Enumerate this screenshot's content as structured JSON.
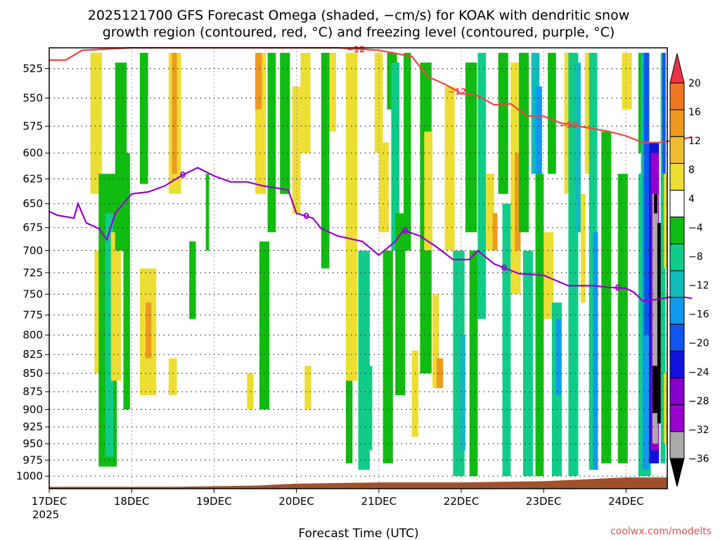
{
  "chart_data": {
    "type": "heatmap",
    "title_line1": "2025121700 GFS Forecast Omega (shaded, −cm/s) for KOAK with dendritic snow",
    "title_line2": "growth region (contoured, red, °C) and freezing level (contoured, purple, °C)",
    "xlabel": "Forecast Time (UTC)",
    "credit": "coolwx.com/modelts",
    "x_ticks": [
      "17DEC",
      "18DEC",
      "19DEC",
      "20DEC",
      "21DEC",
      "22DEC",
      "23DEC",
      "24DEC"
    ],
    "x_year": "2025",
    "x_range_days": [
      0,
      7.5
    ],
    "y_ticks": [
      525,
      550,
      575,
      600,
      625,
      650,
      675,
      700,
      725,
      750,
      775,
      800,
      825,
      850,
      875,
      900,
      925,
      950,
      975,
      1000
    ],
    "y_range_hpa": [
      508,
      1020
    ],
    "y_scale": "log",
    "colorbar_labels": [
      "20",
      "16",
      "12",
      "8",
      "4",
      "−4",
      "−8",
      "−12",
      "−16",
      "−20",
      "−24",
      "−28",
      "−32",
      "−36"
    ],
    "colorbar_colors": [
      "#ee3344",
      "#ee7722",
      "#ee9922",
      "#eebb33",
      "#eedd33",
      "#ffffff",
      "#11bb11",
      "#11cc88",
      "#11bbbb",
      "#1199ee",
      "#1155ee",
      "#1111dd",
      "#8800cc",
      "#9900cc",
      "#aaaaaa",
      "#000000"
    ],
    "colors": {
      "freezing_level": "#9900cc",
      "dgz": "#ee4444",
      "terrain": "#a0522d",
      "credit": "#e05050"
    },
    "freezing_level": {
      "label": "0",
      "points": [
        [
          0,
          658
        ],
        [
          0.1,
          662
        ],
        [
          0.3,
          665
        ],
        [
          0.35,
          650
        ],
        [
          0.45,
          670
        ],
        [
          0.6,
          676
        ],
        [
          0.7,
          688
        ],
        [
          0.8,
          660
        ],
        [
          1.0,
          640
        ],
        [
          1.2,
          638
        ],
        [
          1.4,
          632
        ],
        [
          1.6,
          622
        ],
        [
          1.8,
          614
        ],
        [
          2.0,
          622
        ],
        [
          2.2,
          628
        ],
        [
          2.4,
          628
        ],
        [
          2.6,
          632
        ],
        [
          2.9,
          636
        ],
        [
          3.0,
          660
        ],
        [
          3.2,
          665
        ],
        [
          3.3,
          676
        ],
        [
          3.5,
          684
        ],
        [
          3.8,
          690
        ],
        [
          4.0,
          705
        ],
        [
          4.2,
          690
        ],
        [
          4.3,
          678
        ],
        [
          4.5,
          684
        ],
        [
          4.7,
          696
        ],
        [
          4.9,
          710
        ],
        [
          5.1,
          710
        ],
        [
          5.2,
          700
        ],
        [
          5.4,
          715
        ],
        [
          5.7,
          726
        ],
        [
          6.0,
          728
        ],
        [
          6.3,
          740
        ],
        [
          6.6,
          740
        ],
        [
          6.8,
          742
        ],
        [
          7.0,
          743
        ],
        [
          7.1,
          748
        ],
        [
          7.2,
          758
        ],
        [
          7.4,
          756
        ],
        [
          7.6,
          752
        ],
        [
          7.8,
          755
        ]
      ]
    },
    "dgz_contour": {
      "label": "−12",
      "points": [
        [
          0,
          518
        ],
        [
          0.2,
          518
        ],
        [
          0.4,
          510
        ],
        [
          1.0,
          508
        ],
        [
          3.5,
          508
        ],
        [
          4.0,
          510
        ],
        [
          4.4,
          515
        ],
        [
          4.6,
          532
        ],
        [
          4.8,
          538
        ],
        [
          5.0,
          546
        ],
        [
          5.2,
          548
        ],
        [
          5.4,
          556
        ],
        [
          5.6,
          555
        ],
        [
          5.8,
          566
        ],
        [
          6.0,
          566
        ],
        [
          6.2,
          572
        ],
        [
          6.5,
          576
        ],
        [
          6.8,
          580
        ],
        [
          7.0,
          584
        ],
        [
          7.2,
          590
        ],
        [
          7.4,
          590
        ],
        [
          7.6,
          588
        ],
        [
          7.8,
          585
        ]
      ]
    },
    "dgz_labels_x": [
      3.72,
      4.95,
      6.3
    ],
    "fl_labels_x": [
      1.62,
      3.12,
      4.32,
      5.52,
      6.9
    ],
    "terrain_points": [
      [
        0,
        1017
      ],
      [
        1.5,
        1017
      ],
      [
        2.5,
        1015
      ],
      [
        3.0,
        1012
      ],
      [
        4.0,
        1010
      ],
      [
        5.0,
        1010
      ],
      [
        6.0,
        1008
      ],
      [
        6.5,
        1005
      ],
      [
        7.0,
        1002
      ],
      [
        7.5,
        1002
      ]
    ],
    "omega_regions": [
      {
        "x": 0.5,
        "w": 0.14,
        "p1": 512,
        "p2": 640,
        "value": 6
      },
      {
        "x": 0.55,
        "w": 0.12,
        "p1": 700,
        "p2": 850,
        "value": 5
      },
      {
        "x": 0.6,
        "w": 0.22,
        "p1": 620,
        "p2": 985,
        "value": -6
      },
      {
        "x": 0.68,
        "w": 0.1,
        "p1": 660,
        "p2": 970,
        "value": -10
      },
      {
        "x": 0.75,
        "w": 0.12,
        "p1": 680,
        "p2": 860,
        "value": 6
      },
      {
        "x": 0.8,
        "w": 0.14,
        "p1": 520,
        "p2": 700,
        "value": -6
      },
      {
        "x": 0.9,
        "w": 0.08,
        "p1": 600,
        "p2": 900,
        "value": -6
      },
      {
        "x": 1.1,
        "w": 0.2,
        "p1": 720,
        "p2": 880,
        "value": 5
      },
      {
        "x": 1.17,
        "w": 0.07,
        "p1": 760,
        "p2": 830,
        "value": 9
      },
      {
        "x": 1.1,
        "w": 0.1,
        "p1": 512,
        "p2": 630,
        "value": -6
      },
      {
        "x": 1.45,
        "w": 0.15,
        "p1": 512,
        "p2": 640,
        "value": 6
      },
      {
        "x": 1.49,
        "w": 0.06,
        "p1": 512,
        "p2": 620,
        "value": 10
      },
      {
        "x": 1.45,
        "w": 0.1,
        "p1": 830,
        "p2": 880,
        "value": 5
      },
      {
        "x": 1.7,
        "w": 0.08,
        "p1": 690,
        "p2": 780,
        "value": -6
      },
      {
        "x": 1.9,
        "w": 0.04,
        "p1": 620,
        "p2": 700,
        "value": -6
      },
      {
        "x": 2.5,
        "w": 0.13,
        "p1": 512,
        "p2": 640,
        "value": 5
      },
      {
        "x": 2.5,
        "w": 0.08,
        "p1": 512,
        "p2": 560,
        "value": 9
      },
      {
        "x": 2.4,
        "w": 0.08,
        "p1": 850,
        "p2": 900,
        "value": 5
      },
      {
        "x": 2.55,
        "w": 0.12,
        "p1": 690,
        "p2": 900,
        "value": -6
      },
      {
        "x": 2.65,
        "w": 0.1,
        "p1": 512,
        "p2": 680,
        "value": -6
      },
      {
        "x": 2.8,
        "w": 0.12,
        "p1": 512,
        "p2": 640,
        "value": -6
      },
      {
        "x": 2.95,
        "w": 0.1,
        "p1": 540,
        "p2": 660,
        "value": 5
      },
      {
        "x": 3.05,
        "w": 0.12,
        "p1": 512,
        "p2": 600,
        "value": 6
      },
      {
        "x": 3.1,
        "w": 0.08,
        "p1": 840,
        "p2": 900,
        "value": 5
      },
      {
        "x": 3.3,
        "w": 0.1,
        "p1": 512,
        "p2": 720,
        "value": -6
      },
      {
        "x": 3.4,
        "w": 0.08,
        "p1": 512,
        "p2": 580,
        "value": 6
      },
      {
        "x": 3.6,
        "w": 0.14,
        "p1": 512,
        "p2": 860,
        "value": 6
      },
      {
        "x": 3.6,
        "w": 0.08,
        "p1": 860,
        "p2": 980,
        "value": -6
      },
      {
        "x": 3.75,
        "w": 0.14,
        "p1": 700,
        "p2": 990,
        "value": -8
      },
      {
        "x": 3.85,
        "w": 0.07,
        "p1": 840,
        "p2": 960,
        "value": -11
      },
      {
        "x": 3.95,
        "w": 0.1,
        "p1": 512,
        "p2": 600,
        "value": 6
      },
      {
        "x": 4.0,
        "w": 0.12,
        "p1": 590,
        "p2": 680,
        "value": 5
      },
      {
        "x": 4.05,
        "w": 0.12,
        "p1": 700,
        "p2": 980,
        "value": -6
      },
      {
        "x": 4.1,
        "w": 0.12,
        "p1": 512,
        "p2": 560,
        "value": -6
      },
      {
        "x": 4.15,
        "w": 0.1,
        "p1": 520,
        "p2": 700,
        "value": -10
      },
      {
        "x": 4.2,
        "w": 0.12,
        "p1": 660,
        "p2": 880,
        "value": -6
      },
      {
        "x": 4.3,
        "w": 0.09,
        "p1": 512,
        "p2": 700,
        "value": -6
      },
      {
        "x": 4.4,
        "w": 0.08,
        "p1": 820,
        "p2": 940,
        "value": 5
      },
      {
        "x": 4.5,
        "w": 0.14,
        "p1": 520,
        "p2": 850,
        "value": -6
      },
      {
        "x": 4.55,
        "w": 0.1,
        "p1": 580,
        "p2": 700,
        "value": 5
      },
      {
        "x": 4.65,
        "w": 0.08,
        "p1": 750,
        "p2": 870,
        "value": 5
      },
      {
        "x": 4.7,
        "w": 0.08,
        "p1": 830,
        "p2": 870,
        "value": 10
      },
      {
        "x": 4.8,
        "w": 0.12,
        "p1": 540,
        "p2": 700,
        "value": 6
      },
      {
        "x": 4.9,
        "w": 0.14,
        "p1": 700,
        "p2": 1000,
        "value": -8
      },
      {
        "x": 4.98,
        "w": 0.07,
        "p1": 800,
        "p2": 960,
        "value": -13
      },
      {
        "x": 5.05,
        "w": 0.14,
        "p1": 520,
        "p2": 680,
        "value": -6
      },
      {
        "x": 5.1,
        "w": 0.1,
        "p1": 700,
        "p2": 1000,
        "value": -6
      },
      {
        "x": 5.2,
        "w": 0.1,
        "p1": 512,
        "p2": 780,
        "value": -10
      },
      {
        "x": 5.3,
        "w": 0.1,
        "p1": 620,
        "p2": 700,
        "value": 5
      },
      {
        "x": 5.38,
        "w": 0.06,
        "p1": 660,
        "p2": 700,
        "value": 9
      },
      {
        "x": 5.45,
        "w": 0.12,
        "p1": 512,
        "p2": 640,
        "value": -6
      },
      {
        "x": 5.5,
        "w": 0.1,
        "p1": 650,
        "p2": 1000,
        "value": -8
      },
      {
        "x": 5.6,
        "w": 0.12,
        "p1": 520,
        "p2": 750,
        "value": 5
      },
      {
        "x": 5.65,
        "w": 0.07,
        "p1": 600,
        "p2": 700,
        "value": 9
      },
      {
        "x": 5.7,
        "w": 0.12,
        "p1": 512,
        "p2": 680,
        "value": -6
      },
      {
        "x": 5.75,
        "w": 0.12,
        "p1": 700,
        "p2": 1000,
        "value": -10
      },
      {
        "x": 5.85,
        "w": 0.1,
        "p1": 512,
        "p2": 620,
        "value": -14
      },
      {
        "x": 5.9,
        "w": 0.08,
        "p1": 540,
        "p2": 620,
        "value": -17
      },
      {
        "x": 5.9,
        "w": 0.1,
        "p1": 620,
        "p2": 1000,
        "value": -6
      },
      {
        "x": 6.0,
        "w": 0.12,
        "p1": 680,
        "p2": 780,
        "value": 6
      },
      {
        "x": 6.05,
        "w": 0.1,
        "p1": 512,
        "p2": 620,
        "value": -6
      },
      {
        "x": 6.1,
        "w": 0.12,
        "p1": 760,
        "p2": 1000,
        "value": -10
      },
      {
        "x": 6.15,
        "w": 0.06,
        "p1": 780,
        "p2": 880,
        "value": -17
      },
      {
        "x": 6.25,
        "w": 0.1,
        "p1": 512,
        "p2": 640,
        "value": 5
      },
      {
        "x": 6.3,
        "w": 0.12,
        "p1": 512,
        "p2": 1000,
        "value": -8
      },
      {
        "x": 6.38,
        "w": 0.07,
        "p1": 520,
        "p2": 680,
        "value": -13
      },
      {
        "x": 6.45,
        "w": 0.06,
        "p1": 640,
        "p2": 760,
        "value": 5
      },
      {
        "x": 6.5,
        "w": 0.12,
        "p1": 512,
        "p2": 620,
        "value": 6
      },
      {
        "x": 6.55,
        "w": 0.1,
        "p1": 512,
        "p2": 990,
        "value": -10
      },
      {
        "x": 6.6,
        "w": 0.06,
        "p1": 680,
        "p2": 990,
        "value": -17
      },
      {
        "x": 6.7,
        "w": 0.12,
        "p1": 580,
        "p2": 980,
        "value": -6
      },
      {
        "x": 6.9,
        "w": 0.12,
        "p1": 620,
        "p2": 980,
        "value": -6
      },
      {
        "x": 6.95,
        "w": 0.12,
        "p1": 512,
        "p2": 560,
        "value": 6
      },
      {
        "x": 7.15,
        "w": 0.1,
        "p1": 512,
        "p2": 600,
        "value": -6
      },
      {
        "x": 7.2,
        "w": 0.08,
        "p1": 512,
        "p2": 580,
        "value": -10
      },
      {
        "x": 7.15,
        "w": 0.15,
        "p1": 620,
        "p2": 1000,
        "value": -8
      },
      {
        "x": 7.18,
        "w": 0.1,
        "p1": 512,
        "p2": 1000,
        "value": -10
      },
      {
        "x": 7.2,
        "w": 0.08,
        "p1": 512,
        "p2": 990,
        "value": -17
      },
      {
        "x": 7.22,
        "w": 0.06,
        "p1": 512,
        "p2": 800,
        "value": -22
      },
      {
        "x": 7.28,
        "w": 0.12,
        "p1": 590,
        "p2": 980,
        "value": -26
      },
      {
        "x": 7.3,
        "w": 0.1,
        "p1": 600,
        "p2": 960,
        "value": -30
      },
      {
        "x": 7.32,
        "w": 0.07,
        "p1": 640,
        "p2": 950,
        "value": -34
      },
      {
        "x": 7.34,
        "w": 0.04,
        "p1": 640,
        "p2": 660,
        "value": -40
      },
      {
        "x": 7.32,
        "w": 0.09,
        "p1": 840,
        "p2": 905,
        "value": -40
      },
      {
        "x": 7.38,
        "w": 0.06,
        "p1": 670,
        "p2": 920,
        "value": -40
      },
      {
        "x": 7.42,
        "w": 0.06,
        "p1": 512,
        "p2": 980,
        "value": -10
      },
      {
        "x": 7.44,
        "w": 0.04,
        "p1": 512,
        "p2": 620,
        "value": -22
      },
      {
        "x": 7.46,
        "w": 0.04,
        "p1": 620,
        "p2": 720,
        "value": 6
      },
      {
        "x": 7.46,
        "w": 0.04,
        "p1": 850,
        "p2": 950,
        "value": 6
      }
    ]
  }
}
